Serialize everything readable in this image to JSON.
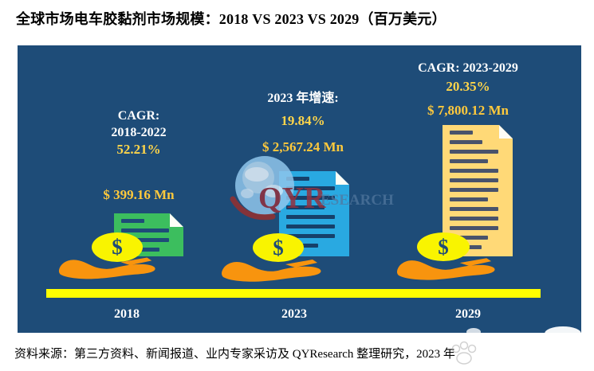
{
  "title": "全球市场电车胶黏剂市场规模：2018 VS 2023 VS 2029（百万美元）",
  "source": "资料来源：第三方资料、新闻报道、业内专家采访及 QYResearch 整理研究，2023 年",
  "icons": {
    "dollar": "$"
  },
  "watermark": {
    "logo_bold": "QYR",
    "logo_rest": "ESEARCH"
  },
  "colors": {
    "chart_background": "#1E4C78",
    "axis_bar": "#FFFF00",
    "header_text": "#FFFFFF",
    "percent_text": "#FFD54A",
    "money_text": "#FFC93C",
    "doc_2018": "#3CBE5E",
    "doc_2023": "#29A9E1",
    "doc_2029": "#FFD977",
    "coin": "#F9F400",
    "hand": "#F8940E"
  },
  "columns": [
    {
      "year": "2018",
      "header": "CAGR:\n2018-2022",
      "percent": "52.21%",
      "value": "$ 399.16 Mn"
    },
    {
      "year": "2023",
      "header": "2023 年增速:",
      "percent": "19.84%",
      "value": "$ 2,567.24 Mn"
    },
    {
      "year": "2029",
      "header": "CAGR: 2023-2029",
      "percent": "20.35%",
      "value": "$ 7,800.12 Mn"
    }
  ],
  "chart_data": {
    "type": "bar",
    "title": "全球市场电车胶黏剂市场规模：2018 VS 2023 VS 2029（百万美元）",
    "categories": [
      "2018",
      "2023",
      "2029"
    ],
    "values": [
      399.16,
      2567.24,
      7800.12
    ],
    "unit": "百万美元 (Mn USD)",
    "ylim": [
      0,
      8000
    ],
    "grid": false,
    "legend": "none",
    "annotations": [
      {
        "category": "2018",
        "label": "CAGR: 2018-2022",
        "percent": "52.21%",
        "value_label": "$ 399.16 Mn"
      },
      {
        "category": "2023",
        "label": "2023 年增速:",
        "percent": "19.84%",
        "value_label": "$ 2,567.24 Mn"
      },
      {
        "category": "2029",
        "label": "CAGR: 2023-2029",
        "percent": "20.35%",
        "value_label": "$ 7,800.12 Mn"
      }
    ],
    "source": "资料来源：第三方资料、新闻报道、业内专家采访及 QYResearch 整理研究，2023 年"
  }
}
